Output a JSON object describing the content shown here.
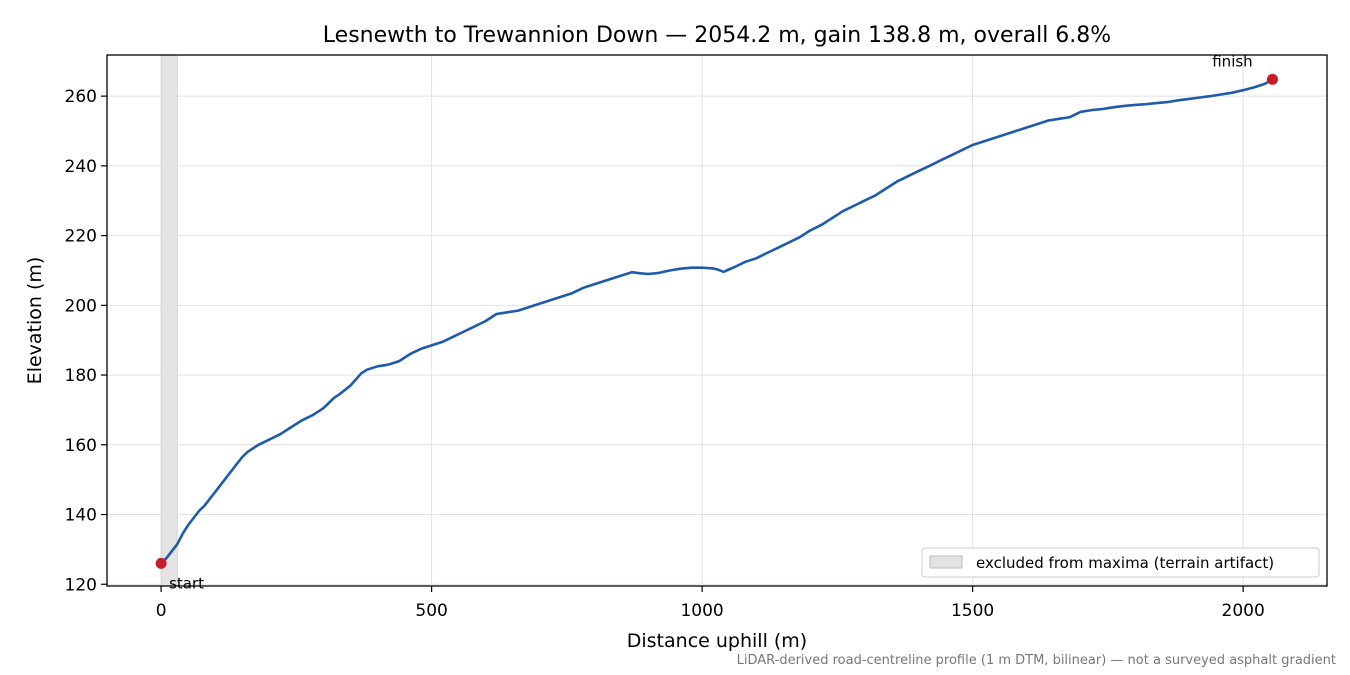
{
  "chart_data": {
    "type": "line",
    "title": "Lesnewth to Trewannion Down — 2054.2 m, gain 138.8 m, overall 6.8%",
    "xlabel": "Distance uphill (m)",
    "ylabel": "Elevation (m)",
    "xlim": [
      -100,
      2155
    ],
    "ylim": [
      119.5,
      271.8
    ],
    "grid": true,
    "x_ticks": [
      0,
      500,
      1000,
      1500,
      2000
    ],
    "y_ticks": [
      120,
      140,
      160,
      180,
      200,
      220,
      240,
      260
    ],
    "x_tick_labels": [
      "0",
      "500",
      "1000",
      "1500",
      "2000"
    ],
    "y_tick_labels": [
      "120",
      "140",
      "160",
      "180",
      "200",
      "220",
      "240",
      "260"
    ],
    "series": [
      {
        "color": "#1f5aad",
        "x": [
          0,
          10,
          20,
          30,
          40,
          50,
          60,
          70,
          80,
          90,
          100,
          110,
          120,
          130,
          140,
          150,
          160,
          170,
          180,
          200,
          220,
          240,
          260,
          280,
          300,
          320,
          330,
          350,
          370,
          380,
          400,
          420,
          440,
          460,
          480,
          500,
          520,
          540,
          560,
          580,
          600,
          620,
          640,
          660,
          680,
          700,
          720,
          740,
          760,
          780,
          800,
          820,
          840,
          860,
          870,
          880,
          900,
          920,
          940,
          960,
          980,
          1000,
          1020,
          1030,
          1040,
          1045,
          1060,
          1080,
          1100,
          1120,
          1140,
          1160,
          1180,
          1200,
          1220,
          1240,
          1260,
          1280,
          1300,
          1320,
          1340,
          1360,
          1380,
          1400,
          1420,
          1440,
          1460,
          1480,
          1500,
          1520,
          1540,
          1560,
          1580,
          1600,
          1620,
          1640,
          1660,
          1680,
          1700,
          1720,
          1740,
          1760,
          1780,
          1800,
          1820,
          1840,
          1860,
          1880,
          1900,
          1920,
          1940,
          1960,
          1980,
          2000,
          2020,
          2040,
          2054.2
        ],
        "y": [
          126.0,
          127.5,
          129.5,
          131.5,
          134.5,
          137.0,
          139.0,
          141.0,
          142.5,
          144.5,
          146.5,
          148.5,
          150.5,
          152.5,
          154.5,
          156.5,
          158.0,
          159.0,
          160.0,
          161.5,
          163.0,
          165.0,
          167.0,
          168.5,
          170.5,
          173.5,
          174.5,
          177.0,
          180.5,
          181.5,
          182.5,
          183.0,
          184.0,
          186.0,
          187.5,
          188.5,
          189.5,
          191.0,
          192.5,
          194.0,
          195.5,
          197.5,
          198.0,
          198.5,
          199.5,
          200.5,
          201.5,
          202.5,
          203.5,
          205.0,
          206.0,
          207.0,
          208.0,
          209.0,
          209.5,
          209.3,
          209.0,
          209.3,
          210.0,
          210.5,
          210.8,
          210.8,
          210.6,
          210.2,
          209.6,
          210.0,
          211.0,
          212.5,
          213.5,
          215.0,
          216.5,
          218.0,
          219.5,
          221.5,
          223.0,
          225.0,
          227.0,
          228.5,
          230.0,
          231.5,
          233.5,
          235.5,
          237.0,
          238.5,
          240.0,
          241.5,
          243.0,
          244.5,
          246.0,
          247.0,
          248.0,
          249.0,
          250.0,
          251.0,
          252.0,
          253.0,
          253.5,
          254.0,
          255.5,
          256.0,
          256.3,
          256.8,
          257.2,
          257.5,
          257.7,
          258.0,
          258.3,
          258.8,
          259.2,
          259.6,
          260.0,
          260.5,
          261.0,
          261.7,
          262.5,
          263.5,
          264.8
        ]
      }
    ],
    "endpoints": [
      {
        "label": "start",
        "x": 0,
        "y": 126.0,
        "color": "#c41e2a"
      },
      {
        "label": "finish",
        "x": 2054.2,
        "y": 264.8,
        "color": "#c41e2a"
      }
    ],
    "excluded_band": {
      "x0": 0,
      "x1": 30,
      "color": "#e3e3e3"
    },
    "legend": {
      "position": "lower-right",
      "label": "excluded from maxima (terrain artifact)"
    },
    "footnote": "LiDAR-derived road-centreline profile (1 m DTM, bilinear) — not a surveyed asphalt gradient"
  }
}
